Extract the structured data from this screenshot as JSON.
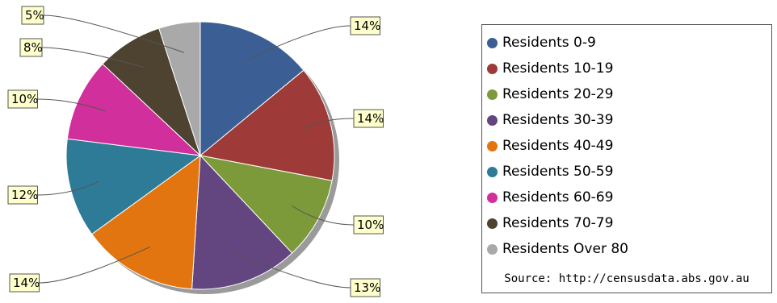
{
  "chart_data": {
    "type": "pie",
    "title": "",
    "series": [
      {
        "name": "Residents 0-9",
        "value": 14,
        "label": "14%",
        "color": "#3b5f94"
      },
      {
        "name": "Residents 10-19",
        "value": 14,
        "label": "14%",
        "color": "#9e3a37"
      },
      {
        "name": "Residents 20-29",
        "value": 10,
        "label": "10%",
        "color": "#7d9a3b"
      },
      {
        "name": "Residents 30-39",
        "value": 13,
        "label": "13%",
        "color": "#63457f"
      },
      {
        "name": "Residents 40-49",
        "value": 14,
        "label": "14%",
        "color": "#e2750f"
      },
      {
        "name": "Residents 50-59",
        "value": 12,
        "label": "12%",
        "color": "#2d7b96"
      },
      {
        "name": "Residents 60-69",
        "value": 10,
        "label": "10%",
        "color": "#d02f9c"
      },
      {
        "name": "Residents 70-79",
        "value": 8,
        "label": "8%",
        "color": "#4d4330"
      },
      {
        "name": "Residents Over 80",
        "value": 5,
        "label": "5%",
        "color": "#a9a9a9"
      }
    ],
    "legend_placement": "right",
    "source": "Source: http://censusdata.abs.gov.au"
  }
}
